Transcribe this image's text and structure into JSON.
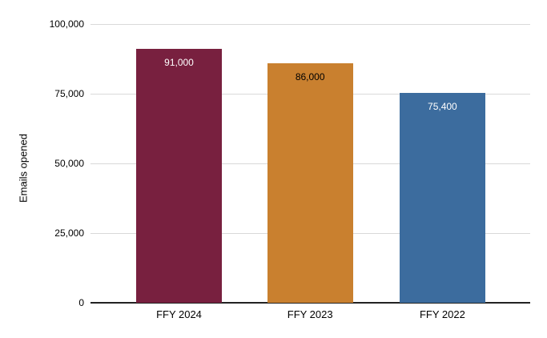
{
  "chart_data": {
    "type": "bar",
    "title": "",
    "categories": [
      "FFY 2024",
      "FFY 2023",
      "FFY 2022"
    ],
    "values": [
      91000,
      86000,
      75400
    ],
    "value_labels": [
      "91,000",
      "86,000",
      "75,400"
    ],
    "bar_colors": [
      "#78203F",
      "#C9802F",
      "#3C6C9E"
    ],
    "value_label_colors": [
      "#FFFFFF",
      "#000000",
      "#FFFFFF"
    ],
    "xlabel": "",
    "ylabel": "Emails opened",
    "ylim": [
      0,
      100000
    ],
    "yticks": [
      0,
      25000,
      50000,
      75000,
      100000
    ],
    "ytick_labels": [
      "0",
      "25,000",
      "50,000",
      "75,000",
      "100,000"
    ],
    "grid": "horizontal",
    "legend": "none"
  },
  "style": {
    "background": "#FFFFFF",
    "gridline_color": "#D9D9D9",
    "axis_line_color": "#222222",
    "text_color": "#000000"
  }
}
